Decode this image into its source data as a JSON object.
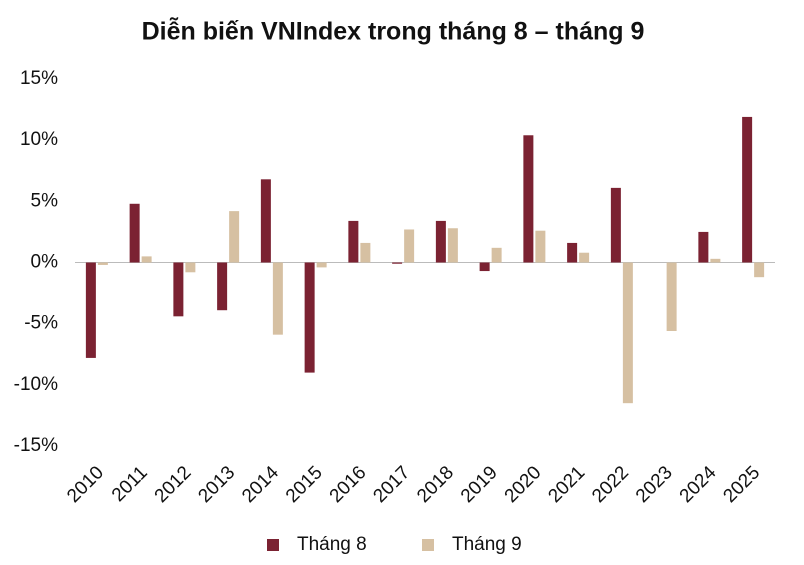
{
  "chart_data": {
    "type": "bar",
    "title": "Diễn biến VNIndex trong tháng 8 – tháng 9",
    "categories": [
      "2010",
      "2011",
      "2012",
      "2013",
      "2014",
      "2015",
      "2016",
      "2017",
      "2018",
      "2019",
      "2020",
      "2021",
      "2022",
      "2023",
      "2024",
      "2025"
    ],
    "series": [
      {
        "name": "Tháng 8",
        "color": "#7b2232",
        "values": [
          -7.8,
          4.8,
          -4.4,
          -3.9,
          6.8,
          -9.0,
          3.4,
          -0.1,
          3.4,
          -0.7,
          10.4,
          1.6,
          6.1,
          0,
          2.5,
          11.9
        ]
      },
      {
        "name": "Tháng 9",
        "color": "#d6c0a2",
        "values": [
          -0.2,
          0.5,
          -0.8,
          4.2,
          -5.9,
          -0.4,
          1.6,
          2.7,
          2.8,
          1.2,
          2.6,
          0.8,
          -11.5,
          -5.6,
          0.3,
          -1.2
        ]
      }
    ],
    "ylim": [
      -15,
      15
    ],
    "yticks": [
      {
        "value": 15,
        "label": "15%"
      },
      {
        "value": 10,
        "label": "10%"
      },
      {
        "value": 5,
        "label": "5%"
      },
      {
        "value": 0,
        "label": "0%"
      },
      {
        "value": -5,
        "label": "-5%"
      },
      {
        "value": -10,
        "label": "-10%"
      },
      {
        "value": -15,
        "label": "-15%"
      }
    ],
    "grid": false,
    "legend": "bottom"
  }
}
